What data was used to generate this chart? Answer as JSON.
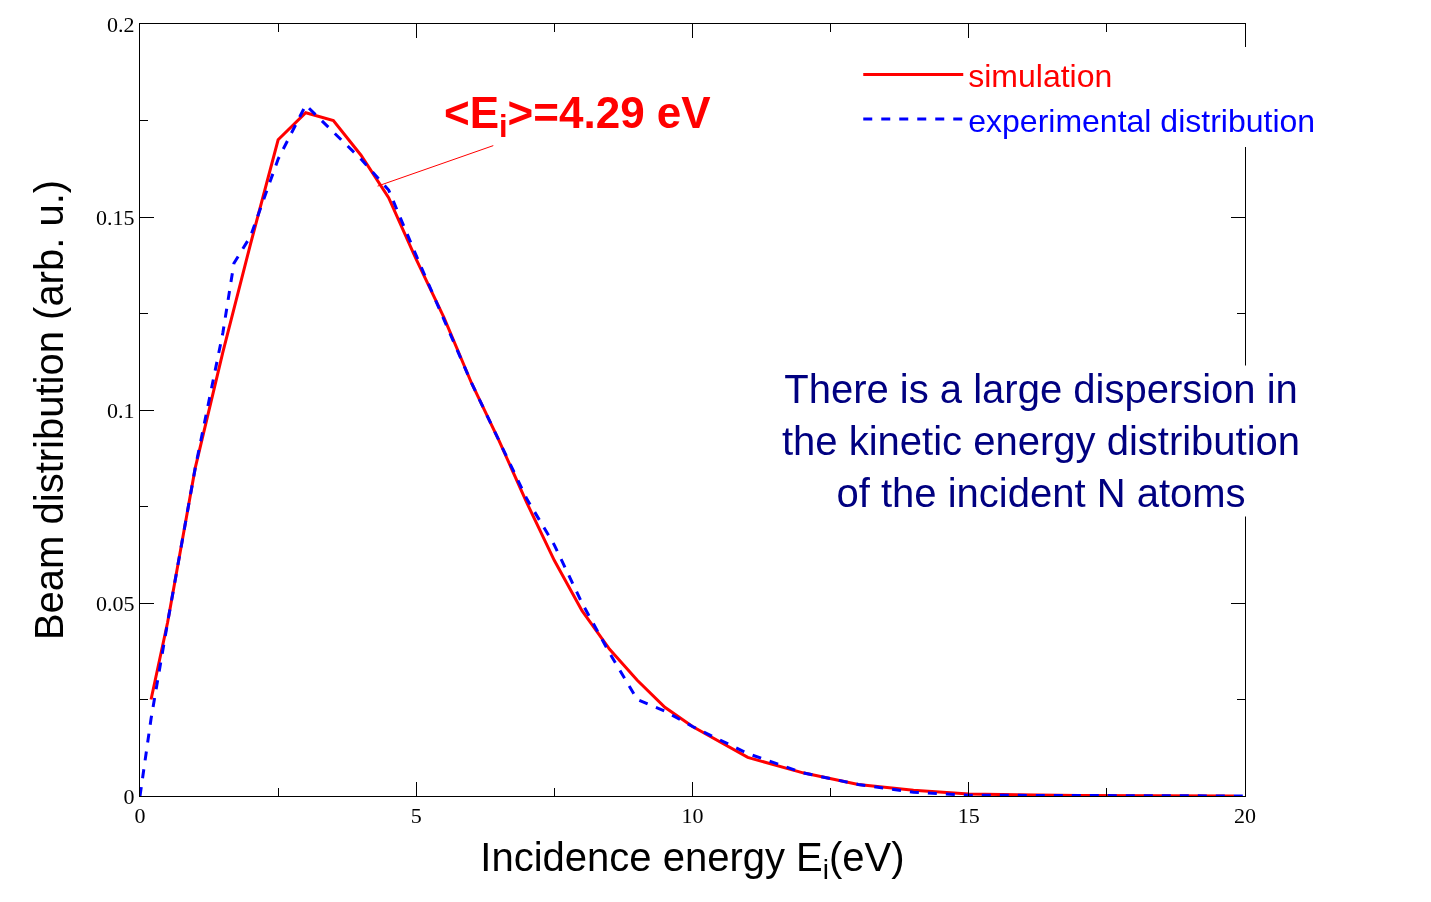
{
  "chart_data": {
    "type": "line",
    "xlabel": "Incidence energy E$_{i}$(eV)",
    "ylabel": "Beam distribution (arb. u.)",
    "xlim": [
      0,
      20
    ],
    "xticks": [
      0,
      5,
      10,
      15,
      20
    ],
    "ylim": [
      0,
      0.2
    ],
    "yticks": [
      0,
      0.05,
      0.1,
      0.15,
      0.2
    ],
    "legend": "top right",
    "marker": "none",
    "series": [
      {
        "name": "simulation",
        "color": "#ff0000",
        "line_style": "solid",
        "x": [
          0.2,
          0.5,
          1.0,
          1.5,
          2.0,
          2.5,
          3.0,
          3.5,
          4.0,
          4.5,
          5.0,
          5.5,
          6.0,
          6.5,
          7.0,
          7.5,
          8.0,
          8.5,
          9.0,
          9.5,
          10,
          11,
          12,
          13,
          14,
          15,
          17,
          19.8
        ],
        "values": [
          0.025,
          0.045,
          0.085,
          0.115,
          0.143,
          0.17,
          0.177,
          0.175,
          0.166,
          0.155,
          0.139,
          0.124,
          0.107,
          0.092,
          0.076,
          0.061,
          0.048,
          0.038,
          0.03,
          0.023,
          0.018,
          0.01,
          0.006,
          0.003,
          0.0015,
          0.0005,
          0.0001,
          0
        ]
      },
      {
        "name": "experimental distribution",
        "color": "#0000ff",
        "line_style": "dashed",
        "x": [
          0,
          0.2,
          0.5,
          1.0,
          1.5,
          1.7,
          2.0,
          2.5,
          3.0,
          3.5,
          4.0,
          4.5,
          5.0,
          6.0,
          7.0,
          7.5,
          8.0,
          8.5,
          9.0,
          9.5,
          10,
          11,
          12,
          13,
          14,
          15,
          20
        ],
        "values": [
          0,
          0.02,
          0.045,
          0.085,
          0.12,
          0.138,
          0.145,
          0.165,
          0.179,
          0.172,
          0.165,
          0.157,
          0.14,
          0.107,
          0.077,
          0.065,
          0.05,
          0.037,
          0.025,
          0.022,
          0.018,
          0.011,
          0.006,
          0.003,
          0.001,
          0.0002,
          0
        ]
      }
    ],
    "annotations": [
      {
        "text": "<E$_{i}$>=4.29 eV",
        "x": 4.3,
        "y": 0.158
      },
      "There is a large dispersion in\nthe kinetic energy distribution\nof the incident N atoms"
    ]
  }
}
